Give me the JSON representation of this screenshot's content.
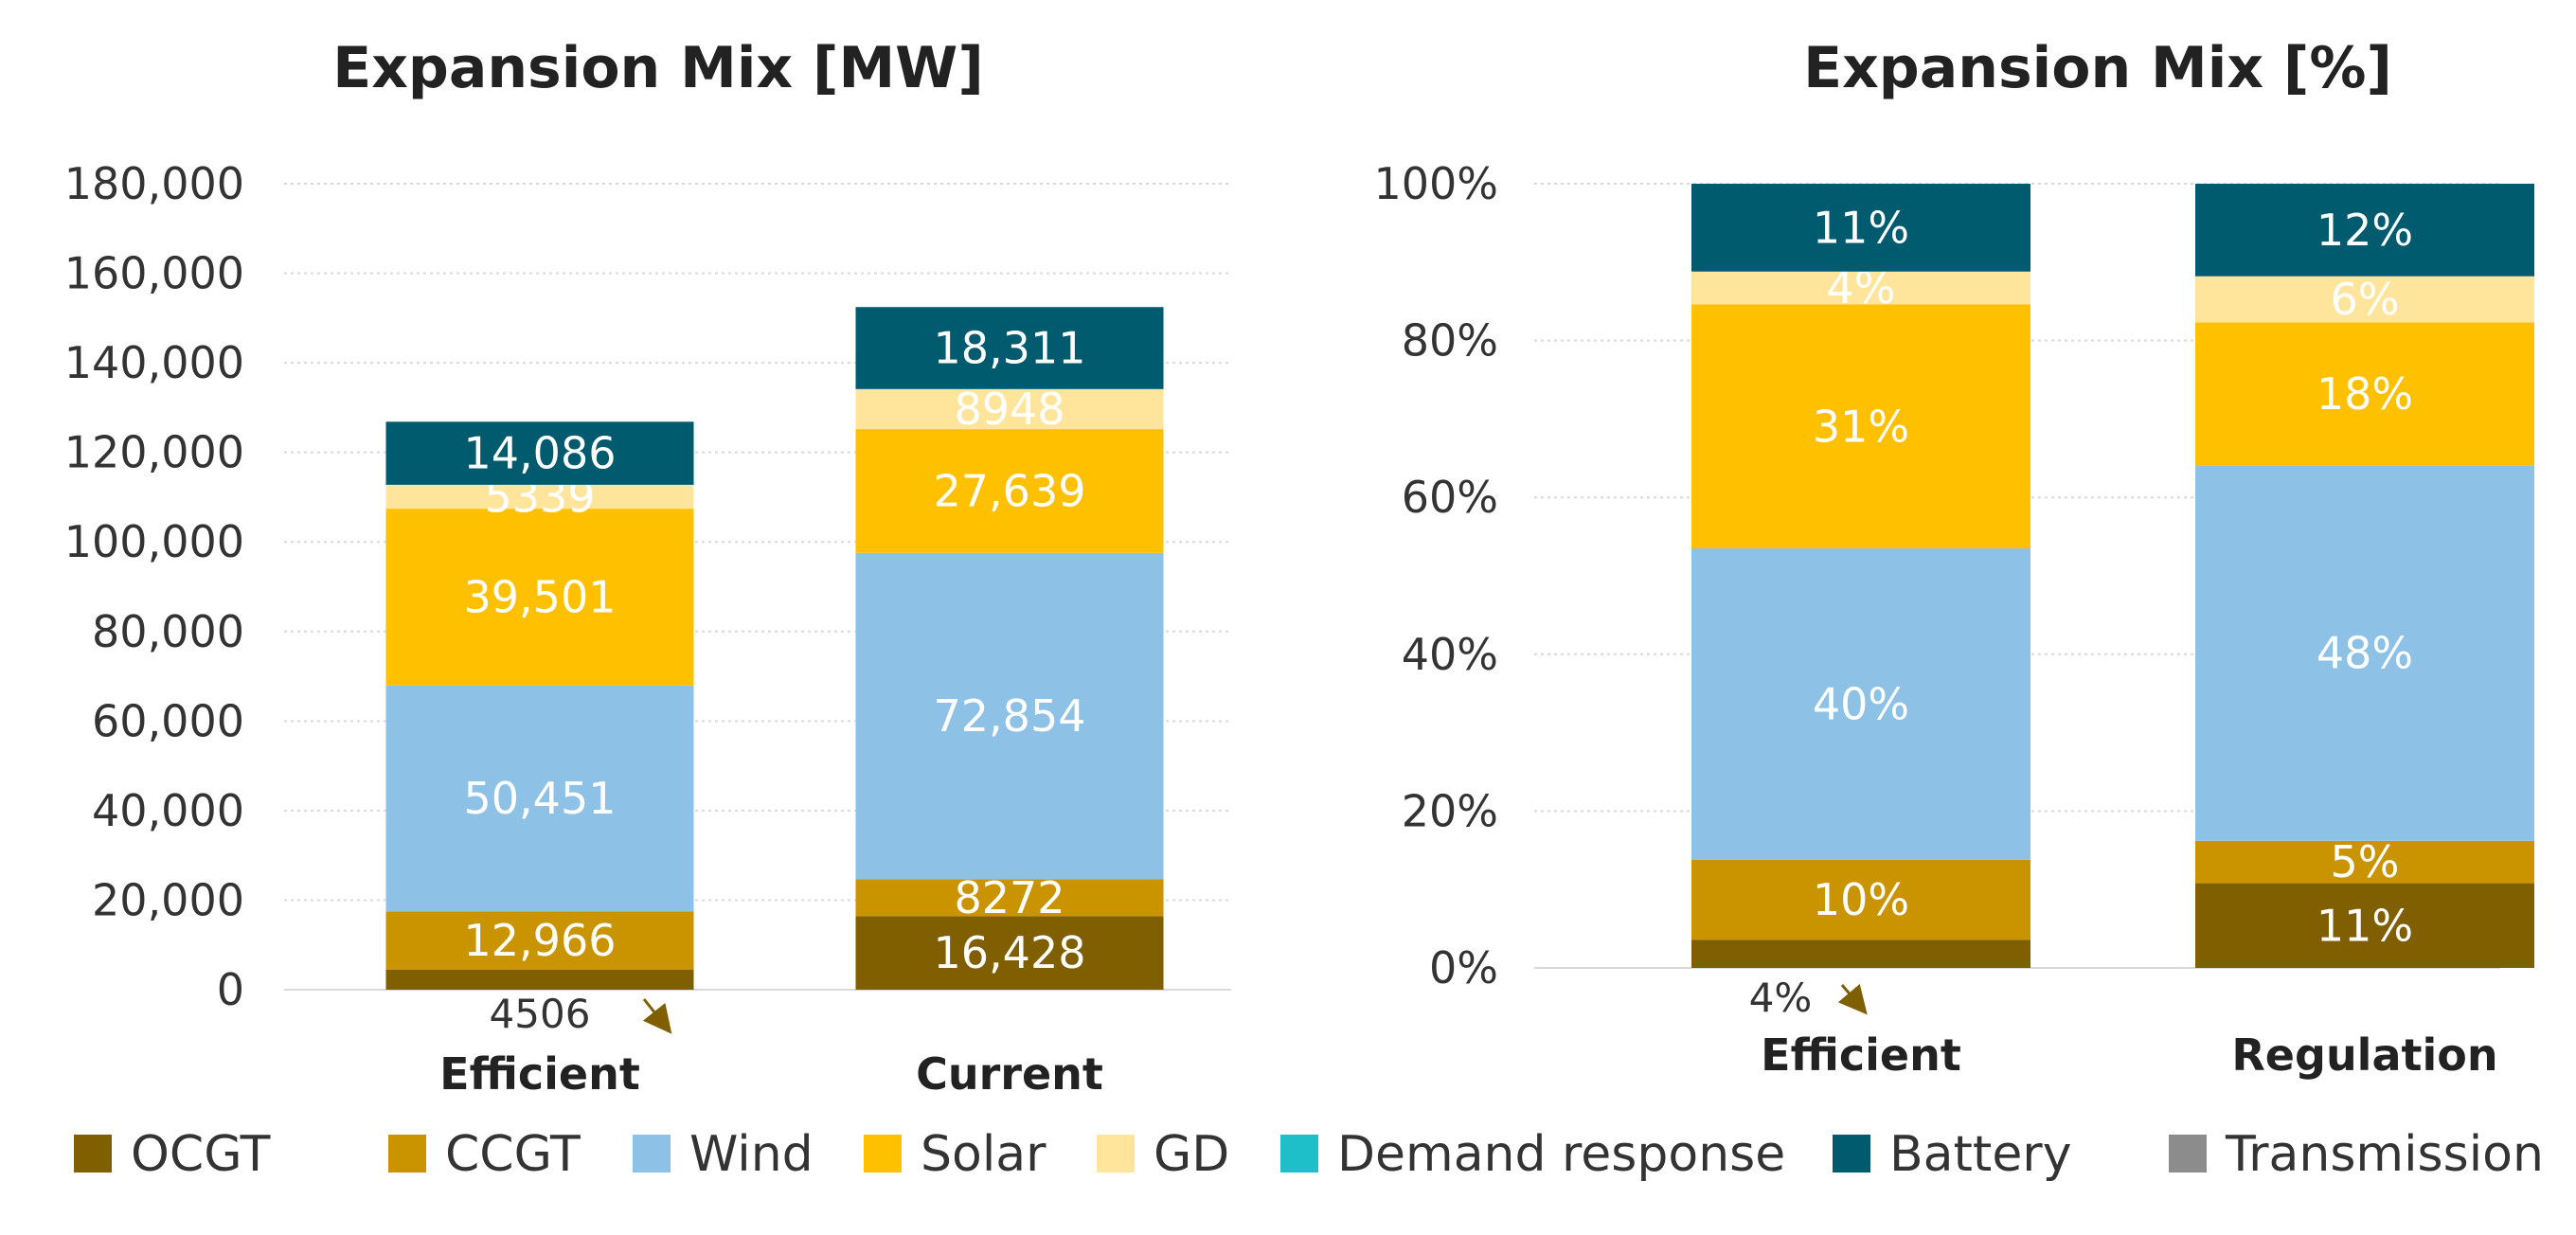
{
  "series_colors": {
    "OCGT": "#7f5f00",
    "CCGT": "#c99400",
    "Wind": "#8ec1e6",
    "Solar": "#ffc000",
    "GD": "#ffe49b",
    "Demand response": "#1ebfc8",
    "Battery": "#005b6e",
    "Transmission": "#8c8c8c"
  },
  "legend": [
    "OCGT",
    "CCGT",
    "Wind",
    "Solar",
    "GD",
    "Demand response",
    "Battery",
    "Transmission"
  ],
  "chart_data": [
    {
      "type": "bar",
      "stacked": true,
      "title": "Expansion Mix [MW]",
      "categories": [
        "Efficient",
        "Current"
      ],
      "ylim": [
        0,
        180000
      ],
      "yticks": [
        "0",
        "20,000",
        "40,000",
        "60,000",
        "80,000",
        "100,000",
        "120,000",
        "140,000",
        "160,000",
        "180,000"
      ],
      "ytick_values": [
        0,
        20000,
        40000,
        60000,
        80000,
        100000,
        120000,
        140000,
        160000,
        180000
      ],
      "grid": true,
      "series": [
        {
          "name": "OCGT",
          "values": [
            4506,
            16428
          ],
          "labels": [
            "4506",
            "16,428"
          ]
        },
        {
          "name": "CCGT",
          "values": [
            12966,
            8272
          ],
          "labels": [
            "12,966",
            "8272"
          ]
        },
        {
          "name": "Wind",
          "values": [
            50451,
            72854
          ],
          "labels": [
            "50,451",
            "72,854"
          ]
        },
        {
          "name": "Solar",
          "values": [
            39501,
            27639
          ],
          "labels": [
            "39,501",
            "27,639"
          ]
        },
        {
          "name": "GD",
          "values": [
            5339,
            8948
          ],
          "labels": [
            "5339",
            "8948"
          ]
        },
        {
          "name": "Battery",
          "values": [
            14086,
            18311
          ],
          "labels": [
            "14,086",
            "18,311"
          ]
        }
      ]
    },
    {
      "type": "bar",
      "stacked": true,
      "title": "Expansion Mix [%]",
      "categories": [
        "Efficient",
        "Regulation"
      ],
      "ylim": [
        0,
        100
      ],
      "yticks": [
        "0%",
        "20%",
        "40%",
        "60%",
        "80%",
        "100%"
      ],
      "ytick_values": [
        0,
        20,
        40,
        60,
        80,
        100
      ],
      "grid": true,
      "series": [
        {
          "name": "OCGT",
          "values": [
            3.6,
            10.8
          ],
          "labels": [
            "4%",
            "11%"
          ]
        },
        {
          "name": "CCGT",
          "values": [
            10.2,
            5.4
          ],
          "labels": [
            "10%",
            "5%"
          ]
        },
        {
          "name": "Wind",
          "values": [
            39.7,
            47.9
          ],
          "labels": [
            "40%",
            "48%"
          ]
        },
        {
          "name": "Solar",
          "values": [
            31.1,
            18.2
          ],
          "labels": [
            "31%",
            "18%"
          ]
        },
        {
          "name": "GD",
          "values": [
            4.2,
            5.9
          ],
          "labels": [
            "4%",
            "6%"
          ]
        },
        {
          "name": "Battery",
          "values": [
            11.2,
            11.8
          ],
          "labels": [
            "11%",
            "12%"
          ]
        }
      ]
    }
  ]
}
